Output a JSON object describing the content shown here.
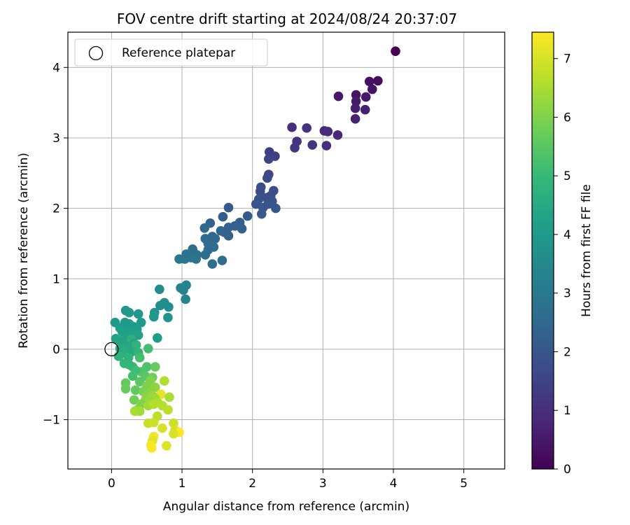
{
  "chart_data": {
    "type": "scatter",
    "title": "FOV centre drift starting at 2024/08/24 20:37:07",
    "xlabel": "Angular distance from reference (arcmin)",
    "ylabel": "Rotation from reference (arcmin)",
    "xlim": [
      -0.62,
      5.58
    ],
    "ylim": [
      -1.7,
      4.5
    ],
    "xticks": [
      0,
      1,
      2,
      3,
      4,
      5
    ],
    "yticks": [
      -1,
      0,
      1,
      2,
      3,
      4
    ],
    "xtick_labels": [
      "0",
      "1",
      "2",
      "3",
      "4",
      "5"
    ],
    "ytick_labels": [
      "−1",
      "0",
      "1",
      "2",
      "3",
      "4"
    ],
    "grid": true,
    "colormap": "viridis",
    "legend": {
      "placement": "top-left",
      "entries": [
        {
          "label": "Reference platepar",
          "marker": "open-circle"
        }
      ]
    },
    "colorbar": {
      "label": "Hours from first FF file",
      "range": [
        0,
        7.45
      ],
      "ticks": [
        0,
        1,
        2,
        3,
        4,
        5,
        6,
        7
      ],
      "tick_labels": [
        "0",
        "1",
        "2",
        "3",
        "4",
        "5",
        "6",
        "7"
      ]
    },
    "reference_point": {
      "x": 0,
      "y": 0
    },
    "points": [
      {
        "x": 4.03,
        "y": 4.23,
        "c": 0.0
      },
      {
        "x": 3.78,
        "y": 3.81,
        "c": 0.25
      },
      {
        "x": 3.66,
        "y": 3.8,
        "c": 0.3
      },
      {
        "x": 3.7,
        "y": 3.69,
        "c": 0.35
      },
      {
        "x": 3.47,
        "y": 3.61,
        "c": 0.4
      },
      {
        "x": 3.22,
        "y": 3.59,
        "c": 0.45
      },
      {
        "x": 3.61,
        "y": 3.58,
        "c": 0.5
      },
      {
        "x": 3.47,
        "y": 3.52,
        "c": 0.55
      },
      {
        "x": 3.46,
        "y": 3.42,
        "c": 0.6
      },
      {
        "x": 3.6,
        "y": 3.4,
        "c": 0.65
      },
      {
        "x": 3.46,
        "y": 3.27,
        "c": 0.7
      },
      {
        "x": 2.56,
        "y": 3.15,
        "c": 1.0
      },
      {
        "x": 2.77,
        "y": 3.14,
        "c": 1.05
      },
      {
        "x": 3.02,
        "y": 3.1,
        "c": 0.9
      },
      {
        "x": 3.07,
        "y": 3.09,
        "c": 0.95
      },
      {
        "x": 3.21,
        "y": 3.04,
        "c": 0.85
      },
      {
        "x": 2.63,
        "y": 2.95,
        "c": 1.1
      },
      {
        "x": 2.85,
        "y": 2.9,
        "c": 1.15
      },
      {
        "x": 3.05,
        "y": 2.89,
        "c": 1.0
      },
      {
        "x": 2.6,
        "y": 2.86,
        "c": 1.2
      },
      {
        "x": 2.24,
        "y": 2.8,
        "c": 1.4
      },
      {
        "x": 2.32,
        "y": 2.74,
        "c": 1.45
      },
      {
        "x": 2.23,
        "y": 2.7,
        "c": 1.5
      },
      {
        "x": 2.23,
        "y": 2.48,
        "c": 1.6
      },
      {
        "x": 2.21,
        "y": 2.43,
        "c": 1.65
      },
      {
        "x": 2.12,
        "y": 2.3,
        "c": 1.7
      },
      {
        "x": 2.11,
        "y": 2.24,
        "c": 1.75
      },
      {
        "x": 2.3,
        "y": 2.25,
        "c": 1.8
      },
      {
        "x": 2.26,
        "y": 2.18,
        "c": 1.82
      },
      {
        "x": 2.2,
        "y": 2.15,
        "c": 1.85
      },
      {
        "x": 2.09,
        "y": 2.13,
        "c": 1.9
      },
      {
        "x": 2.28,
        "y": 2.1,
        "c": 1.92
      },
      {
        "x": 2.22,
        "y": 2.06,
        "c": 1.95
      },
      {
        "x": 2.05,
        "y": 2.06,
        "c": 1.97
      },
      {
        "x": 2.15,
        "y": 2.01,
        "c": 2.0
      },
      {
        "x": 2.33,
        "y": 2.0,
        "c": 2.02
      },
      {
        "x": 1.66,
        "y": 2.01,
        "c": 2.1
      },
      {
        "x": 2.13,
        "y": 1.92,
        "c": 2.05
      },
      {
        "x": 1.58,
        "y": 1.88,
        "c": 2.15
      },
      {
        "x": 1.93,
        "y": 1.89,
        "c": 2.1
      },
      {
        "x": 1.4,
        "y": 1.79,
        "c": 2.3
      },
      {
        "x": 1.82,
        "y": 1.8,
        "c": 2.2
      },
      {
        "x": 1.75,
        "y": 1.75,
        "c": 2.25
      },
      {
        "x": 1.66,
        "y": 1.73,
        "c": 2.3
      },
      {
        "x": 1.32,
        "y": 1.72,
        "c": 2.5
      },
      {
        "x": 1.85,
        "y": 1.71,
        "c": 2.28
      },
      {
        "x": 1.55,
        "y": 1.68,
        "c": 2.4
      },
      {
        "x": 1.6,
        "y": 1.66,
        "c": 2.38
      },
      {
        "x": 1.43,
        "y": 1.6,
        "c": 2.45
      },
      {
        "x": 1.66,
        "y": 1.61,
        "c": 2.35
      },
      {
        "x": 1.33,
        "y": 1.57,
        "c": 2.55
      },
      {
        "x": 1.47,
        "y": 1.57,
        "c": 2.5
      },
      {
        "x": 1.37,
        "y": 1.5,
        "c": 2.6
      },
      {
        "x": 1.45,
        "y": 1.45,
        "c": 2.62
      },
      {
        "x": 1.15,
        "y": 1.42,
        "c": 2.75
      },
      {
        "x": 1.37,
        "y": 1.41,
        "c": 2.65
      },
      {
        "x": 1.06,
        "y": 1.35,
        "c": 2.8
      },
      {
        "x": 1.21,
        "y": 1.34,
        "c": 2.75
      },
      {
        "x": 1.33,
        "y": 1.34,
        "c": 2.7
      },
      {
        "x": 1.13,
        "y": 1.3,
        "c": 2.85
      },
      {
        "x": 1.2,
        "y": 1.28,
        "c": 2.85
      },
      {
        "x": 0.96,
        "y": 1.28,
        "c": 2.9
      },
      {
        "x": 1.04,
        "y": 1.28,
        "c": 2.9
      },
      {
        "x": 1.57,
        "y": 1.26,
        "c": 2.6
      },
      {
        "x": 1.43,
        "y": 1.21,
        "c": 2.65
      },
      {
        "x": 1.06,
        "y": 0.91,
        "c": 3.3
      },
      {
        "x": 0.98,
        "y": 0.87,
        "c": 3.35
      },
      {
        "x": 1.02,
        "y": 0.84,
        "c": 3.35
      },
      {
        "x": 0.68,
        "y": 0.85,
        "c": 3.6
      },
      {
        "x": 1.05,
        "y": 0.71,
        "c": 3.4
      },
      {
        "x": 0.75,
        "y": 0.66,
        "c": 3.65
      },
      {
        "x": 0.69,
        "y": 0.62,
        "c": 3.7
      },
      {
        "x": 0.81,
        "y": 0.6,
        "c": 3.7
      },
      {
        "x": 0.61,
        "y": 0.52,
        "c": 3.9
      },
      {
        "x": 0.2,
        "y": 0.55,
        "c": 3.9
      },
      {
        "x": 0.25,
        "y": 0.52,
        "c": 3.95
      },
      {
        "x": 0.38,
        "y": 0.5,
        "c": 3.95
      },
      {
        "x": 0.6,
        "y": 0.46,
        "c": 3.95
      },
      {
        "x": 0.8,
        "y": 0.45,
        "c": 3.8
      },
      {
        "x": 0.05,
        "y": 0.38,
        "c": 4.0
      },
      {
        "x": 0.19,
        "y": 0.38,
        "c": 4.0
      },
      {
        "x": 0.42,
        "y": 0.38,
        "c": 4.05
      },
      {
        "x": 0.25,
        "y": 0.36,
        "c": 4.05
      },
      {
        "x": 0.31,
        "y": 0.32,
        "c": 4.1
      },
      {
        "x": 0.12,
        "y": 0.3,
        "c": 4.1
      },
      {
        "x": 0.36,
        "y": 0.28,
        "c": 4.1
      },
      {
        "x": 0.21,
        "y": 0.26,
        "c": 4.15
      },
      {
        "x": 0.15,
        "y": 0.25,
        "c": 4.2
      },
      {
        "x": 0.3,
        "y": 0.22,
        "c": 4.2
      },
      {
        "x": 0.38,
        "y": 0.2,
        "c": 4.25
      },
      {
        "x": 0.65,
        "y": 0.16,
        "c": 4.1
      },
      {
        "x": 0.22,
        "y": 0.18,
        "c": 4.25
      },
      {
        "x": 0.06,
        "y": 0.15,
        "c": 4.3
      },
      {
        "x": 0.12,
        "y": 0.12,
        "c": 4.3
      },
      {
        "x": 0.28,
        "y": 0.14,
        "c": 4.7
      },
      {
        "x": 0.32,
        "y": 0.08,
        "c": 4.35
      },
      {
        "x": 0.18,
        "y": 0.06,
        "c": 4.35
      },
      {
        "x": 0.25,
        "y": 0.04,
        "c": 4.4
      },
      {
        "x": 0.35,
        "y": 0.06,
        "c": 4.8
      },
      {
        "x": 0.12,
        "y": 0.01,
        "c": 4.5
      },
      {
        "x": 0.52,
        "y": 0.01,
        "c": 5.2
      },
      {
        "x": 0.2,
        "y": -0.02,
        "c": 4.6
      },
      {
        "x": 0.28,
        "y": -0.04,
        "c": 4.5
      },
      {
        "x": 0.15,
        "y": -0.06,
        "c": 4.65
      },
      {
        "x": 0.38,
        "y": -0.05,
        "c": 4.9
      },
      {
        "x": 0.1,
        "y": -0.1,
        "c": 4.7
      },
      {
        "x": 0.24,
        "y": -0.12,
        "c": 4.8
      },
      {
        "x": 0.4,
        "y": -0.12,
        "c": 5.2
      },
      {
        "x": 0.18,
        "y": -0.2,
        "c": 4.9
      },
      {
        "x": 0.3,
        "y": -0.25,
        "c": 5.0
      },
      {
        "x": 0.25,
        "y": -0.22,
        "c": 4.95
      },
      {
        "x": 0.5,
        "y": -0.25,
        "c": 5.3
      },
      {
        "x": 0.62,
        "y": -0.25,
        "c": 5.7
      },
      {
        "x": 0.42,
        "y": -0.32,
        "c": 5.4
      },
      {
        "x": 0.34,
        "y": -0.3,
        "c": 5.1
      },
      {
        "x": 0.3,
        "y": -0.38,
        "c": 5.2
      },
      {
        "x": 0.48,
        "y": -0.38,
        "c": 5.5
      },
      {
        "x": 0.58,
        "y": -0.4,
        "c": 5.8
      },
      {
        "x": 0.55,
        "y": -0.45,
        "c": 6.0
      },
      {
        "x": 0.75,
        "y": -0.45,
        "c": 6.6
      },
      {
        "x": 0.4,
        "y": -0.46,
        "c": 5.5
      },
      {
        "x": 0.2,
        "y": -0.48,
        "c": 5.6
      },
      {
        "x": 0.5,
        "y": -0.52,
        "c": 6.0
      },
      {
        "x": 0.62,
        "y": -0.54,
        "c": 6.2
      },
      {
        "x": 0.2,
        "y": -0.56,
        "c": 5.7
      },
      {
        "x": 0.34,
        "y": -0.58,
        "c": 5.6
      },
      {
        "x": 0.45,
        "y": -0.6,
        "c": 5.9
      },
      {
        "x": 0.56,
        "y": -0.6,
        "c": 6.1
      },
      {
        "x": 0.7,
        "y": -0.64,
        "c": 7.2
      },
      {
        "x": 0.5,
        "y": -0.66,
        "c": 6.1
      },
      {
        "x": 0.58,
        "y": -0.66,
        "c": 6.3
      },
      {
        "x": 0.62,
        "y": -0.7,
        "c": 6.4
      },
      {
        "x": 0.82,
        "y": -0.68,
        "c": 6.5
      },
      {
        "x": 0.32,
        "y": -0.72,
        "c": 5.8
      },
      {
        "x": 0.48,
        "y": -0.72,
        "c": 6.2
      },
      {
        "x": 0.55,
        "y": -0.74,
        "c": 6.3
      },
      {
        "x": 0.66,
        "y": -0.76,
        "c": 6.5
      },
      {
        "x": 0.42,
        "y": -0.78,
        "c": 6.0
      },
      {
        "x": 0.52,
        "y": -0.8,
        "c": 6.4
      },
      {
        "x": 0.6,
        "y": -0.78,
        "c": 6.6
      },
      {
        "x": 0.72,
        "y": -0.8,
        "c": 6.6
      },
      {
        "x": 0.38,
        "y": -0.85,
        "c": 6.0
      },
      {
        "x": 0.8,
        "y": -0.86,
        "c": 6.7
      },
      {
        "x": 0.33,
        "y": -0.88,
        "c": 6.5
      },
      {
        "x": 0.4,
        "y": -0.88,
        "c": 6.4
      },
      {
        "x": 0.65,
        "y": -0.95,
        "c": 6.7
      },
      {
        "x": 0.52,
        "y": -1.05,
        "c": 6.8
      },
      {
        "x": 0.6,
        "y": -1.04,
        "c": 6.9
      },
      {
        "x": 0.88,
        "y": -1.05,
        "c": 6.9
      },
      {
        "x": 0.72,
        "y": -1.12,
        "c": 7.0
      },
      {
        "x": 0.9,
        "y": -1.15,
        "c": 7.0
      },
      {
        "x": 0.96,
        "y": -1.18,
        "c": 7.45
      },
      {
        "x": 0.88,
        "y": -1.2,
        "c": 7.0
      },
      {
        "x": 0.6,
        "y": -1.24,
        "c": 7.3
      },
      {
        "x": 0.58,
        "y": -1.3,
        "c": 7.1
      },
      {
        "x": 0.78,
        "y": -1.37,
        "c": 7.1
      },
      {
        "x": 0.56,
        "y": -1.36,
        "c": 7.35
      },
      {
        "x": 0.57,
        "y": -1.4,
        "c": 7.4
      }
    ]
  }
}
